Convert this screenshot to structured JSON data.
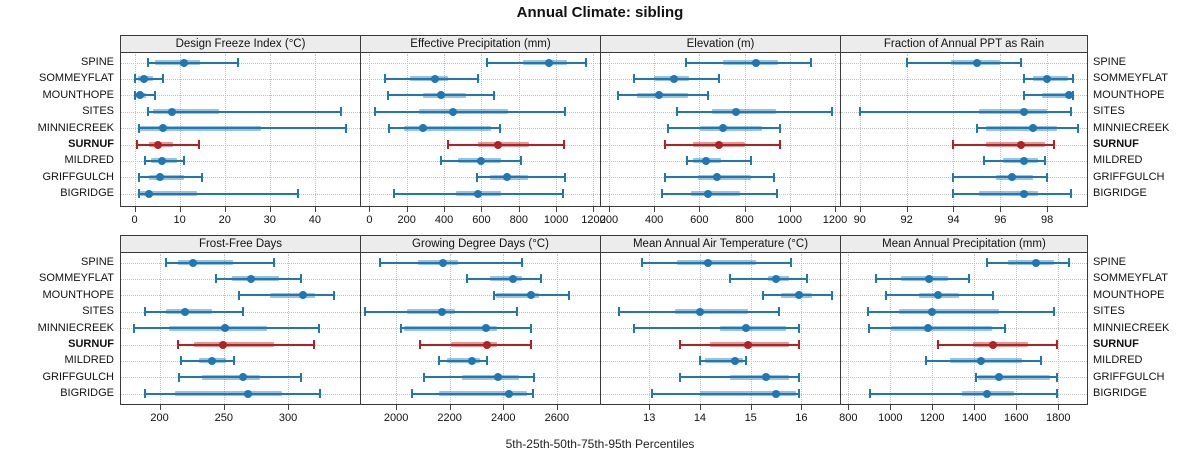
{
  "title": "Annual Climate: sibling",
  "caption": "5th-25th-50th-75th-95th Percentiles",
  "sites": [
    "SPINE",
    "SOMMEYFLAT",
    "MOUNTHOPE",
    "SITES",
    "MINNIECREEK",
    "SURNUF",
    "MILDRED",
    "GRIFFGULCH",
    "BIGRIDGE"
  ],
  "highlight_site": "SURNUF",
  "colors": {
    "series": "#1f77b4",
    "highlight": "#b22222",
    "grid": "#c2c2c2",
    "header_bg": "#ececec",
    "border": "#3a3a3a"
  },
  "chart_data": [
    {
      "type": "interval",
      "title": "Design Freeze Index (°C)",
      "row": 0,
      "col": 0,
      "xlim": [
        -3,
        50
      ],
      "ticks": [
        0,
        10,
        20,
        30,
        40
      ],
      "percentile_labels": [
        "p5",
        "p25",
        "p50",
        "p75",
        "p95"
      ],
      "series": {
        "SPINE": [
          3,
          4.5,
          11,
          14.5,
          23
        ],
        "SOMMEYFLAT": [
          0.2,
          0.8,
          2,
          4,
          6.3
        ],
        "MOUNTHOPE": [
          0.1,
          0.4,
          1.2,
          2.6,
          4.6
        ],
        "SITES": [
          3,
          4,
          8.3,
          18.7,
          45.8
        ],
        "MINNIECREEK": [
          0.9,
          1.2,
          6.3,
          28,
          47
        ],
        "SURNUF": [
          0.6,
          3.1,
          5.1,
          8.6,
          14.2
        ],
        "MILDRED": [
          2.4,
          3.6,
          6,
          9.4,
          10.9
        ],
        "GRIFFGULCH": [
          1,
          3.2,
          5.6,
          10.9,
          14.9
        ],
        "BIGRIDGE": [
          0.9,
          1.2,
          3.1,
          13.9,
          36.3
        ]
      }
    },
    {
      "type": "interval",
      "title": "Effective Precipitation (mm)",
      "row": 0,
      "col": 1,
      "xlim": [
        -45,
        1235
      ],
      "ticks": [
        0,
        200,
        400,
        600,
        800,
        1000,
        1200
      ],
      "series": {
        "SPINE": [
          630,
          820,
          960,
          1060,
          1160
        ],
        "SOMMEYFLAT": [
          85,
          220,
          350,
          420,
          580
        ],
        "MOUNTHOPE": [
          100,
          285,
          385,
          515,
          665
        ],
        "SITES": [
          30,
          265,
          450,
          740,
          1050
        ],
        "MINNIECREEK": [
          105,
          185,
          285,
          650,
          700
        ],
        "SURNUF": [
          420,
          580,
          690,
          855,
          1040
        ],
        "MILDRED": [
          385,
          475,
          595,
          705,
          810
        ],
        "GRIFFGULCH": [
          575,
          645,
          735,
          850,
          1045
        ],
        "BIGRIDGE": [
          130,
          465,
          580,
          705,
          1035
        ]
      }
    },
    {
      "type": "interval",
      "title": "Elevation (m)",
      "row": 0,
      "col": 2,
      "xlim": [
        165,
        1222
      ],
      "ticks": [
        200,
        400,
        600,
        800,
        1000,
        1200
      ],
      "series": {
        "SPINE": [
          540,
          705,
          850,
          950,
          1095
        ],
        "SOMMEYFLAT": [
          310,
          400,
          490,
          555,
          685
        ],
        "MOUNTHOPE": [
          240,
          325,
          420,
          550,
          640
        ],
        "SITES": [
          500,
          655,
          760,
          940,
          1185
        ],
        "MINNIECREEK": [
          460,
          605,
          705,
          875,
          955
        ],
        "SURNUF": [
          450,
          570,
          685,
          800,
          955
        ],
        "MILDRED": [
          545,
          570,
          630,
          695,
          830
        ],
        "GRIFFGULCH": [
          450,
          595,
          680,
          830,
          930
        ],
        "BIGRIDGE": [
          435,
          565,
          640,
          780,
          945
        ]
      }
    },
    {
      "type": "interval",
      "title": "Fraction of Annual PPT as Rain",
      "row": 0,
      "col": 3,
      "xlim": [
        89.2,
        99.7
      ],
      "ticks": [
        90,
        92,
        94,
        96,
        98
      ],
      "series": {
        "SPINE": [
          92,
          93.9,
          95,
          96,
          96.9
        ],
        "SOMMEYFLAT": [
          97,
          97.4,
          98,
          98.9,
          99.1
        ],
        "MOUNTHOPE": [
          97,
          97.8,
          98.95,
          99.05,
          99.1
        ],
        "SITES": [
          90,
          95.1,
          97,
          98,
          99
        ],
        "MINNIECREEK": [
          95,
          95.4,
          97.4,
          98.4,
          99.3
        ],
        "SURNUF": [
          94,
          95.4,
          96.9,
          97.9,
          98.3
        ],
        "MILDRED": [
          95.3,
          96.1,
          97,
          97.6,
          97.9
        ],
        "GRIFFGULCH": [
          94,
          95.8,
          96.5,
          97.4,
          98
        ],
        "BIGRIDGE": [
          94,
          95.1,
          97,
          97.6,
          99
        ]
      }
    },
    {
      "type": "interval",
      "title": "Frost-Free Days",
      "row": 1,
      "col": 0,
      "xlim": [
        170,
        356
      ],
      "ticks": [
        200,
        250,
        300
      ],
      "series": {
        "SPINE": [
          205,
          214,
          226,
          257,
          289
        ],
        "SOMMEYFLAT": [
          244,
          256,
          271,
          293,
          310
        ],
        "MOUNTHOPE": [
          262,
          286,
          312,
          321,
          336
        ],
        "SITES": [
          189,
          205,
          220,
          241,
          265
        ],
        "MINNIECREEK": [
          180,
          207,
          251,
          284,
          324
        ],
        "SURNUF": [
          214,
          227,
          249,
          289,
          320
        ],
        "MILDRED": [
          217,
          231,
          241,
          252,
          258
        ],
        "GRIFFGULCH": [
          215,
          233,
          265,
          278,
          310
        ],
        "BIGRIDGE": [
          189,
          212,
          269,
          295,
          325
        ]
      }
    },
    {
      "type": "interval",
      "title": "Growing Degree Days (°C)",
      "row": 1,
      "col": 1,
      "xlim": [
        1869,
        2761
      ],
      "ticks": [
        2000,
        2200,
        2400,
        2600
      ],
      "series": {
        "SPINE": [
          1940,
          2080,
          2175,
          2230,
          2470
        ],
        "SOMMEYFLAT": [
          2265,
          2350,
          2435,
          2470,
          2540
        ],
        "MOUNTHOPE": [
          2365,
          2372,
          2505,
          2535,
          2645
        ],
        "SITES": [
          1885,
          2040,
          2170,
          2220,
          2450
        ],
        "MINNIECREEK": [
          2020,
          2028,
          2335,
          2375,
          2505
        ],
        "SURNUF": [
          2090,
          2205,
          2340,
          2378,
          2505
        ],
        "MILDRED": [
          2160,
          2190,
          2285,
          2315,
          2340
        ],
        "GRIFFGULCH": [
          2105,
          2245,
          2380,
          2460,
          2515
        ],
        "BIGRIDGE": [
          2060,
          2160,
          2420,
          2490,
          2510
        ]
      }
    },
    {
      "type": "interval",
      "title": "Mean Annual Air Temperature (°C)",
      "row": 1,
      "col": 2,
      "xlim": [
        12.05,
        16.76
      ],
      "ticks": [
        13,
        14,
        15,
        16
      ],
      "series": {
        "SPINE": [
          12.85,
          13.55,
          14.15,
          15.1,
          15.8
        ],
        "SOMMEYFLAT": [
          14.6,
          15.35,
          15.5,
          15.75,
          16.1
        ],
        "MOUNTHOPE": [
          15.25,
          15.6,
          15.95,
          16.2,
          16.6
        ],
        "SITES": [
          12.4,
          13.5,
          14,
          14.95,
          15.55
        ],
        "MINNIECREEK": [
          12.7,
          14.4,
          14.9,
          15.7,
          15.95
        ],
        "SURNUF": [
          13.6,
          14.2,
          14.95,
          15.75,
          15.95
        ],
        "MILDRED": [
          14,
          14.1,
          14.7,
          14.85,
          14.9
        ],
        "GRIFFGULCH": [
          13.6,
          14.6,
          15.3,
          15.75,
          15.95
        ],
        "BIGRIDGE": [
          13.05,
          14,
          15.5,
          15.9,
          15.95
        ]
      }
    },
    {
      "type": "interval",
      "title": "Mean Annual Precipitation (mm)",
      "row": 1,
      "col": 3,
      "xlim": [
        765,
        1937
      ],
      "ticks": [
        800,
        1000,
        1200,
        1400,
        1600,
        1800
      ],
      "series": {
        "SPINE": [
          1460,
          1560,
          1695,
          1780,
          1850
        ],
        "SOMMEYFLAT": [
          930,
          1050,
          1185,
          1275,
          1375
        ],
        "MOUNTHOPE": [
          980,
          1135,
          1225,
          1325,
          1490
        ],
        "SITES": [
          895,
          1040,
          1200,
          1520,
          1780
        ],
        "MINNIECREEK": [
          900,
          1005,
          1180,
          1485,
          1545
        ],
        "SURNUF": [
          1225,
          1395,
          1490,
          1655,
          1795
        ],
        "MILDRED": [
          1170,
          1285,
          1430,
          1625,
          1720
        ],
        "GRIFFGULCH": [
          1410,
          1418,
          1520,
          1760,
          1795
        ],
        "BIGRIDGE": [
          905,
          1340,
          1460,
          1590,
          1795
        ]
      }
    }
  ]
}
